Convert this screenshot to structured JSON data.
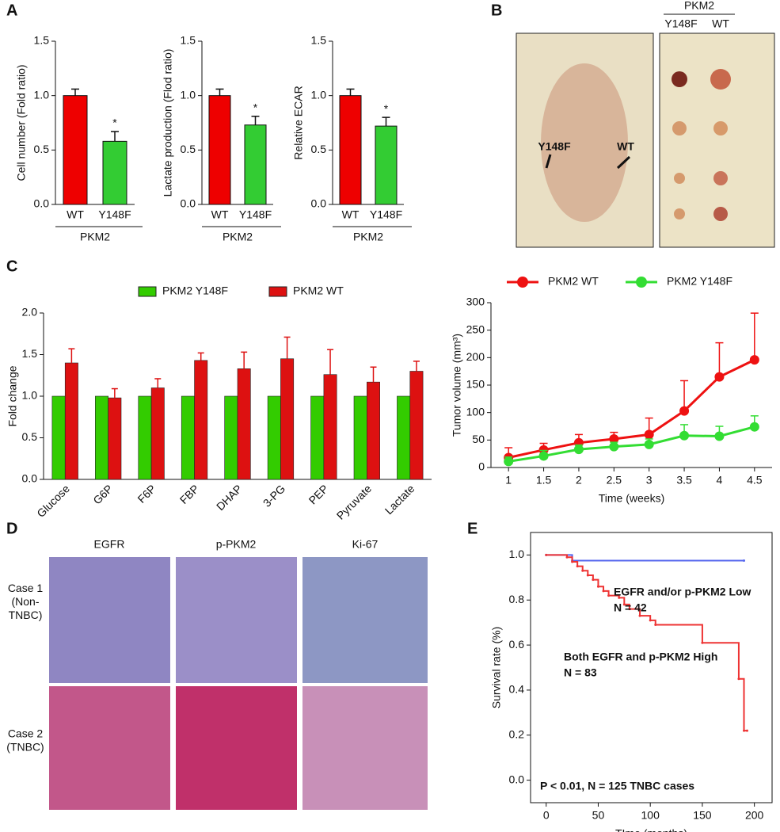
{
  "panel_labels": [
    "A",
    "B",
    "C",
    "D",
    "E"
  ],
  "panel_b": {
    "group_label": "PKM2",
    "mouse_labels": [
      "Y148F",
      "WT"
    ],
    "column_labels": [
      "Y148F",
      "WT"
    ]
  },
  "panel_d": {
    "columns": [
      "EGFR",
      "p-PKM2",
      "Ki-67"
    ],
    "rows": [
      "Case 1\n(Non-\nTNBC)",
      "Case 2\n(TNBC)"
    ]
  },
  "chart_data": [
    {
      "type": "bar",
      "ylabel": "Cell number (Fold ratio)",
      "categories": [
        "WT",
        "Y148F"
      ],
      "values": [
        1.0,
        0.58
      ],
      "errors": [
        0.06,
        0.09
      ],
      "colors": [
        "#ee0000",
        "#33cc33"
      ],
      "group_label": "PKM2",
      "significance": "*",
      "ylim": [
        0,
        1.5
      ],
      "yticks": [
        {
          "value": 0,
          "label": "0.0"
        },
        {
          "value": 0.5,
          "label": "0.5"
        },
        {
          "value": 1,
          "label": "1.0"
        },
        {
          "value": 1.5,
          "label": "1.5"
        }
      ]
    },
    {
      "type": "bar",
      "ylabel": "Lactate production (Flod ratio)",
      "categories": [
        "WT",
        "Y148F"
      ],
      "values": [
        1.0,
        0.73
      ],
      "errors": [
        0.06,
        0.08
      ],
      "colors": [
        "#ee0000",
        "#33cc33"
      ],
      "group_label": "PKM2",
      "significance": "*",
      "ylim": [
        0,
        1.5
      ],
      "yticks": [
        {
          "value": 0,
          "label": "0.0"
        },
        {
          "value": 0.5,
          "label": "0.5"
        },
        {
          "value": 1,
          "label": "1.0"
        },
        {
          "value": 1.5,
          "label": "1.5"
        }
      ]
    },
    {
      "type": "bar",
      "ylabel": "Relative ECAR",
      "categories": [
        "WT",
        "Y148F"
      ],
      "values": [
        1.0,
        0.72
      ],
      "errors": [
        0.06,
        0.08
      ],
      "colors": [
        "#ee0000",
        "#33cc33"
      ],
      "group_label": "PKM2",
      "significance": "*",
      "ylim": [
        0,
        1.5
      ],
      "yticks": [
        {
          "value": 0,
          "label": "0.0"
        },
        {
          "value": 0.5,
          "label": "0.5"
        },
        {
          "value": 1,
          "label": "1.0"
        },
        {
          "value": 1.5,
          "label": "1.5"
        }
      ]
    },
    {
      "type": "bar",
      "ylabel": "Fold change",
      "legend": "top",
      "categories": [
        "Glucose",
        "G6P",
        "F6P",
        "FBP",
        "DHAP",
        "3-PG",
        "PEP",
        "Pyruvate",
        "Lactate"
      ],
      "series": [
        {
          "name": "PKM2 Y148F",
          "color": "#33cc00",
          "values": [
            1,
            1,
            1,
            1,
            1,
            1,
            1,
            1,
            1
          ]
        },
        {
          "name": "PKM2 WT",
          "color": "#dd1111",
          "values": [
            1.4,
            0.98,
            1.1,
            1.43,
            1.33,
            1.45,
            1.26,
            1.17,
            1.3
          ],
          "errors": [
            0.17,
            0.11,
            0.11,
            0.09,
            0.2,
            0.26,
            0.3,
            0.18,
            0.12
          ]
        }
      ],
      "ylim": [
        0,
        2
      ],
      "yticks": [
        {
          "value": 0,
          "label": "0.0"
        },
        {
          "value": 0.5,
          "label": "0.5"
        },
        {
          "value": 1,
          "label": "1.0"
        },
        {
          "value": 1.5,
          "label": "1.5"
        },
        {
          "value": 2,
          "label": "2.0"
        }
      ]
    },
    {
      "type": "line",
      "ylabel": "Tumor volume (mm³)",
      "xlabel": "Time  (weeks)",
      "legend": "top",
      "x": [
        1,
        1.5,
        2,
        2.5,
        3,
        3.5,
        4,
        4.5
      ],
      "series": [
        {
          "name": "PKM2 WT",
          "color": "#ee1111",
          "values": [
            18,
            32,
            45,
            52,
            60,
            103,
            165,
            196
          ],
          "errors": [
            18,
            12,
            15,
            12,
            30,
            55,
            62,
            85
          ]
        },
        {
          "name": "PKM2 Y148F",
          "color": "#33dd33",
          "values": [
            11,
            21,
            33,
            38,
            42,
            58,
            57,
            74
          ],
          "errors": [
            8,
            10,
            8,
            8,
            10,
            20,
            18,
            20
          ]
        }
      ],
      "xlim": [
        0.75,
        4.75
      ],
      "xticks": [
        1,
        1.5,
        2,
        2.5,
        3,
        3.5,
        4,
        4.5
      ],
      "ylim": [
        0,
        300
      ],
      "yticks": [
        0,
        50,
        100,
        150,
        200,
        250,
        300
      ]
    },
    {
      "type": "line",
      "step": true,
      "ylabel": "Survival rate (%)",
      "xlabel": "TIme (months)",
      "annotations": [
        "EGFR and/or p-PKM2 Low",
        "N = 42",
        "Both EGFR and p-PKM2 High",
        "N = 83",
        "P < 0.01, N = 125 TNBC cases"
      ],
      "series": [
        {
          "color": "#5566ee",
          "x": [
            0,
            25,
            190
          ],
          "values": [
            1.0,
            0.975,
            0.975
          ]
        },
        {
          "color": "#ee3333",
          "x": [
            0,
            20,
            25,
            30,
            35,
            40,
            45,
            50,
            55,
            60,
            70,
            75,
            80,
            90,
            100,
            105,
            150,
            185,
            190,
            193
          ],
          "values": [
            1.0,
            0.99,
            0.97,
            0.95,
            0.93,
            0.91,
            0.89,
            0.86,
            0.84,
            0.82,
            0.81,
            0.78,
            0.76,
            0.73,
            0.71,
            0.69,
            0.61,
            0.45,
            0.22,
            0.22
          ]
        }
      ],
      "xlim": [
        -15,
        217
      ],
      "xticks": [
        0,
        50,
        100,
        150,
        200
      ],
      "ylim": [
        -0.1,
        1.1
      ],
      "yticks": [
        {
          "value": 0,
          "label": "0.0"
        },
        {
          "value": 0.2,
          "label": "0.2"
        },
        {
          "value": 0.4,
          "label": "0.4"
        },
        {
          "value": 0.6,
          "label": "0.6"
        },
        {
          "value": 0.8,
          "label": "0.8"
        },
        {
          "value": 1,
          "label": "1.0"
        }
      ]
    }
  ]
}
